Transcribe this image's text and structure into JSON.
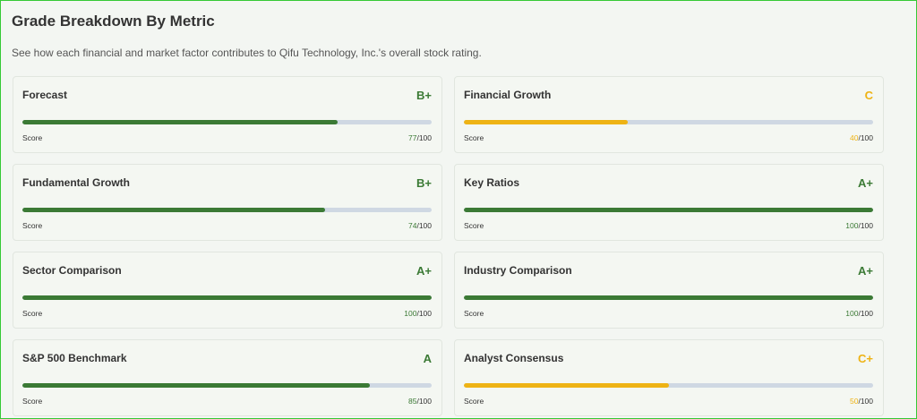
{
  "header": {
    "title": "Grade Breakdown By Metric",
    "subtitle": "See how each financial and market factor contributes to Qifu Technology, Inc.'s overall stock rating."
  },
  "score_label": "Score",
  "scale_max": {
    "value": 100,
    "label": "/100"
  },
  "track_color": "#cfd8e3",
  "cards": [
    {
      "title": "Forecast",
      "grade": "B+",
      "score": 77,
      "color": "#3b7a35"
    },
    {
      "title": "Financial Growth",
      "grade": "C",
      "score": 40,
      "color": "#eeb315"
    },
    {
      "title": "Fundamental Growth",
      "grade": "B+",
      "score": 74,
      "color": "#3b7a35"
    },
    {
      "title": "Key Ratios",
      "grade": "A+",
      "score": 100,
      "color": "#3b7a35"
    },
    {
      "title": "Sector Comparison",
      "grade": "A+",
      "score": 100,
      "color": "#3b7a35"
    },
    {
      "title": "Industry Comparison",
      "grade": "A+",
      "score": 100,
      "color": "#3b7a35"
    },
    {
      "title": "S&P 500 Benchmark",
      "grade": "A",
      "score": 85,
      "color": "#3b7a35"
    },
    {
      "title": "Analyst Consensus",
      "grade": "C+",
      "score": 50,
      "color": "#eeb315"
    }
  ]
}
